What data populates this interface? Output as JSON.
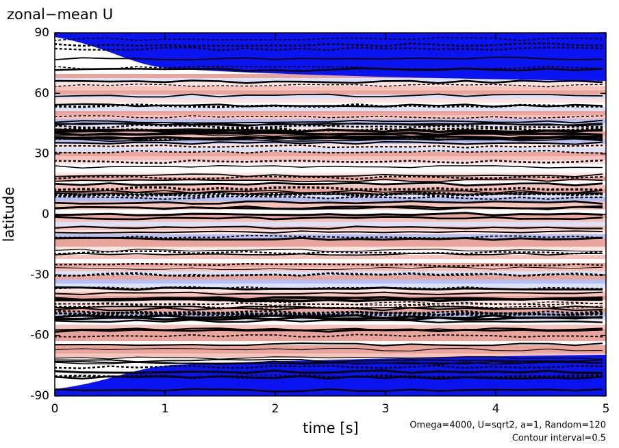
{
  "chart_data": {
    "type": "contour",
    "title": "zonal−mean U",
    "xlabel": "time [s]",
    "ylabel": "latitude",
    "annotations": [
      "Omega=4000, U=sqrt2, a=1, Random=120",
      "Contour interval=0.5"
    ],
    "xlim": [
      0,
      5
    ],
    "xticks": [
      0,
      1,
      2,
      3,
      4,
      5
    ],
    "ylim": [
      -90,
      90
    ],
    "yticks": [
      -90,
      -60,
      -30,
      0,
      30,
      60,
      90
    ]
  }
}
